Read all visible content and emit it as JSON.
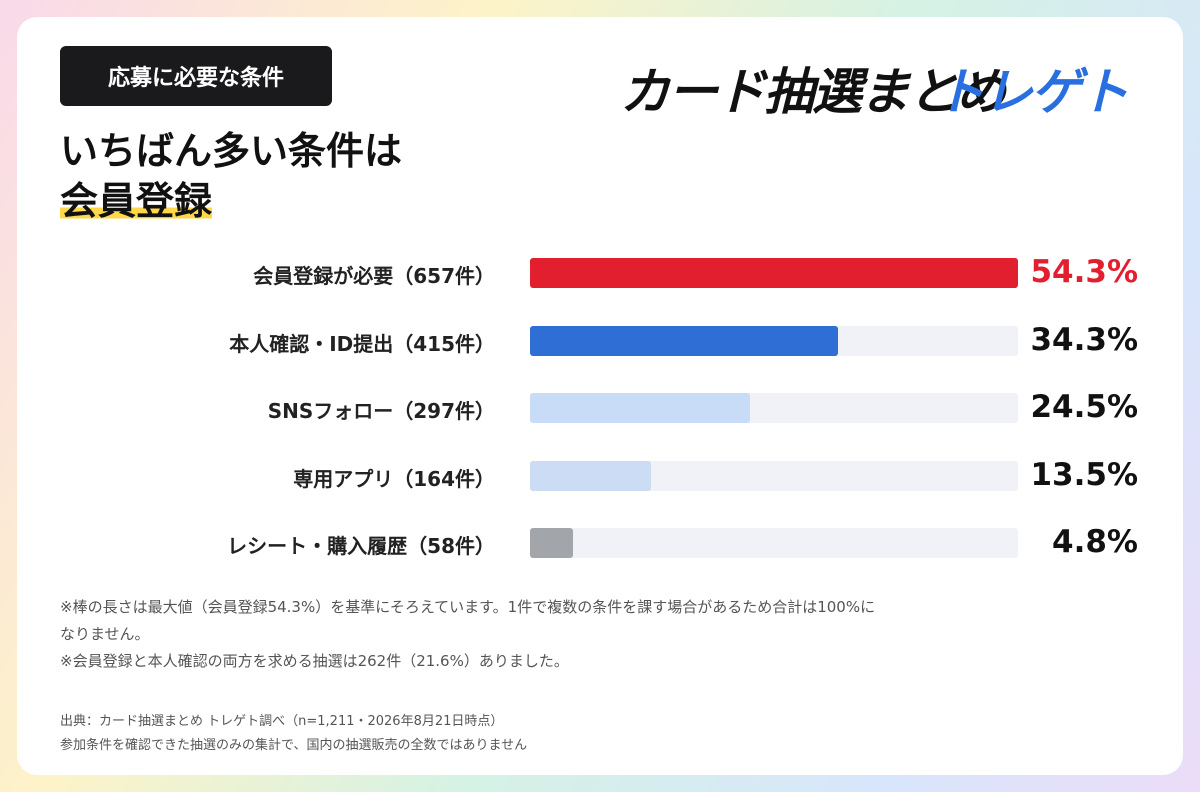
{
  "chart_data": {
    "type": "bar",
    "orientation": "horizontal",
    "tag": "応募に必要な条件",
    "title_lines": [
      "いちばん多い条件は",
      "会員登録"
    ],
    "brand": [
      "カード抽選まとめ",
      "トレゲト"
    ],
    "categories": [
      "会員登録が必要（657件）",
      "本人確認・ID提出（415件）",
      "SNSフォロー（297件）",
      "専用アプリ（164件）",
      "レシート・購入履歴（58件）"
    ],
    "values": [
      54.3,
      34.3,
      24.5,
      13.5,
      4.8
    ],
    "value_labels": [
      "54.3%",
      "34.3%",
      "24.5%",
      "13.5%",
      "4.8%"
    ],
    "colors": [
      "#e21f2f",
      "#2f6ed4",
      "#c9dcf7",
      "#cddcf5",
      "#a2a5aa"
    ],
    "value_label_colors": [
      "#e21f2f",
      "#111111",
      "#111111",
      "#111111",
      "#111111"
    ],
    "xlim": [
      0,
      54.3
    ],
    "notes": [
      "※棒の長さは最大値（会員登録54.3%）を基準にそろえています。1件で複数の条件を課す場合があるため合計は100%になりません。",
      "※会員登録と本人確認の両方を求める抽選は262件（21.6%）ありました。"
    ],
    "source": [
      "出典：カード抽選まとめ トレゲト調べ（n=1,211・2026年8月21日時点）",
      "参加条件を確認できた抽選のみの集計で、国内の抽選販売の全数ではありません"
    ]
  }
}
